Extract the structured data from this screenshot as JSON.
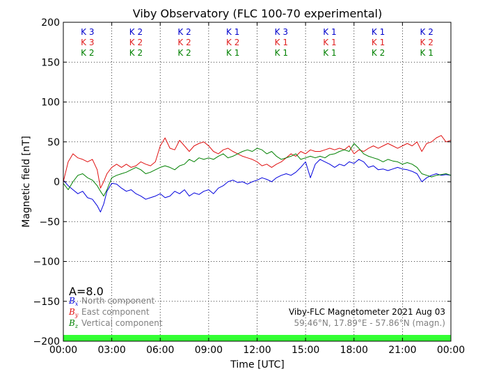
{
  "chart_data": {
    "type": "line",
    "title": "Viby Observatory (FLC 100-70 experimental)",
    "xlabel": "Time [UTC]",
    "ylabel": "Magnetic field [nT]",
    "xlim": [
      0,
      24
    ],
    "ylim": [
      -200,
      200
    ],
    "x_ticks": [
      0,
      3,
      6,
      9,
      12,
      15,
      18,
      21,
      24
    ],
    "x_tick_labels": [
      "00:00",
      "03:00",
      "06:00",
      "09:00",
      "12:00",
      "15:00",
      "18:00",
      "21:00",
      "00:00"
    ],
    "y_ticks": [
      -200,
      -150,
      -100,
      -50,
      0,
      50,
      100,
      150,
      200
    ],
    "y_tick_labels": [
      "−200",
      "−150",
      "−100",
      "−50",
      "0",
      "50",
      "100",
      "150",
      "200"
    ],
    "grid": true,
    "a_index_label": "A=8.0",
    "k_index_rows": [
      {
        "color": "#0000cc",
        "labels": [
          "K 3",
          "K 2",
          "K 2",
          "K 1",
          "K 3",
          "K 1",
          "K 1",
          "K 2"
        ]
      },
      {
        "color": "#e02020",
        "labels": [
          "K 3",
          "K 2",
          "K 2",
          "K 2",
          "K 1",
          "K 1",
          "K 1",
          "K 2"
        ]
      },
      {
        "color": "#008000",
        "labels": [
          "K 2",
          "K 2",
          "K 2",
          "K 1",
          "K 1",
          "K 1",
          "K 2",
          "K 1"
        ]
      }
    ],
    "series": [
      {
        "name": "North component",
        "symbol": "B",
        "subscript": "x",
        "color": "#0000dd",
        "x": [
          0,
          0.3,
          0.6,
          0.9,
          1.2,
          1.5,
          1.8,
          2.1,
          2.3,
          2.5,
          2.7,
          3.0,
          3.3,
          3.6,
          3.9,
          4.2,
          4.5,
          4.8,
          5.1,
          5.4,
          5.7,
          6.0,
          6.3,
          6.6,
          6.9,
          7.2,
          7.5,
          7.8,
          8.1,
          8.4,
          8.7,
          9.0,
          9.3,
          9.6,
          9.9,
          10.2,
          10.5,
          10.8,
          11.1,
          11.4,
          11.7,
          12.0,
          12.3,
          12.6,
          12.9,
          13.2,
          13.5,
          13.8,
          14.1,
          14.4,
          14.7,
          15.0,
          15.3,
          15.6,
          15.9,
          16.2,
          16.5,
          16.8,
          17.1,
          17.4,
          17.7,
          18.0,
          18.3,
          18.6,
          18.9,
          19.2,
          19.5,
          19.8,
          20.1,
          20.4,
          20.7,
          21.0,
          21.3,
          21.6,
          21.9,
          22.2,
          22.5,
          22.8,
          23.1,
          23.4,
          23.7,
          24.0
        ],
        "values": [
          2,
          -5,
          -10,
          -15,
          -12,
          -20,
          -22,
          -30,
          -38,
          -28,
          -12,
          -2,
          -3,
          -8,
          -12,
          -10,
          -15,
          -18,
          -22,
          -20,
          -18,
          -15,
          -20,
          -18,
          -12,
          -15,
          -10,
          -18,
          -14,
          -16,
          -12,
          -10,
          -15,
          -8,
          -5,
          0,
          2,
          -1,
          0,
          -3,
          0,
          2,
          5,
          3,
          0,
          5,
          8,
          10,
          8,
          12,
          18,
          25,
          5,
          22,
          28,
          25,
          22,
          18,
          22,
          20,
          25,
          23,
          28,
          25,
          18,
          20,
          15,
          16,
          14,
          16,
          18,
          16,
          15,
          13,
          10,
          0,
          5,
          8,
          10,
          8,
          9,
          8
        ]
      },
      {
        "name": "East component",
        "symbol": "B",
        "subscript": "y",
        "color": "#e01010",
        "x": [
          0,
          0.3,
          0.6,
          0.9,
          1.2,
          1.5,
          1.8,
          2.1,
          2.3,
          2.5,
          2.7,
          3.0,
          3.3,
          3.6,
          3.9,
          4.2,
          4.5,
          4.8,
          5.1,
          5.4,
          5.7,
          6.0,
          6.3,
          6.6,
          6.9,
          7.2,
          7.5,
          7.8,
          8.1,
          8.4,
          8.7,
          9.0,
          9.3,
          9.6,
          9.9,
          10.2,
          10.5,
          10.8,
          11.1,
          11.4,
          11.7,
          12.0,
          12.3,
          12.6,
          12.9,
          13.2,
          13.5,
          13.8,
          14.1,
          14.4,
          14.7,
          15.0,
          15.3,
          15.6,
          15.9,
          16.2,
          16.5,
          16.8,
          17.1,
          17.4,
          17.7,
          18.0,
          18.3,
          18.6,
          18.9,
          19.2,
          19.5,
          19.8,
          20.1,
          20.4,
          20.7,
          21.0,
          21.3,
          21.6,
          21.9,
          22.2,
          22.5,
          22.8,
          23.1,
          23.4,
          23.7,
          24.0
        ],
        "values": [
          0,
          25,
          35,
          30,
          28,
          25,
          28,
          15,
          -8,
          0,
          10,
          18,
          22,
          18,
          22,
          18,
          20,
          25,
          22,
          20,
          25,
          45,
          55,
          42,
          40,
          52,
          45,
          38,
          45,
          48,
          50,
          45,
          38,
          35,
          40,
          42,
          38,
          35,
          32,
          30,
          28,
          25,
          20,
          22,
          18,
          22,
          25,
          30,
          35,
          32,
          38,
          35,
          40,
          38,
          38,
          40,
          42,
          40,
          42,
          40,
          45,
          35,
          40,
          38,
          42,
          45,
          42,
          45,
          48,
          45,
          42,
          45,
          48,
          45,
          50,
          38,
          48,
          50,
          55,
          58,
          50,
          52
        ]
      },
      {
        "name": "Vertical component",
        "symbol": "B",
        "subscript": "z",
        "color": "#008000",
        "x": [
          0,
          0.3,
          0.6,
          0.9,
          1.2,
          1.5,
          1.8,
          2.1,
          2.3,
          2.5,
          2.7,
          3.0,
          3.3,
          3.6,
          3.9,
          4.2,
          4.5,
          4.8,
          5.1,
          5.4,
          5.7,
          6.0,
          6.3,
          6.6,
          6.9,
          7.2,
          7.5,
          7.8,
          8.1,
          8.4,
          8.7,
          9.0,
          9.3,
          9.6,
          9.9,
          10.2,
          10.5,
          10.8,
          11.1,
          11.4,
          11.7,
          12.0,
          12.3,
          12.6,
          12.9,
          13.2,
          13.5,
          13.8,
          14.1,
          14.4,
          14.7,
          15.0,
          15.3,
          15.6,
          15.9,
          16.2,
          16.5,
          16.8,
          17.1,
          17.4,
          17.7,
          18.0,
          18.3,
          18.6,
          18.9,
          19.2,
          19.5,
          19.8,
          20.1,
          20.4,
          20.7,
          21.0,
          21.3,
          21.6,
          21.9,
          22.2,
          22.5,
          22.8,
          23.1,
          23.4,
          23.7,
          24.0
        ],
        "values": [
          -2,
          -10,
          0,
          8,
          10,
          5,
          2,
          -5,
          -12,
          -18,
          -10,
          5,
          8,
          10,
          12,
          15,
          18,
          15,
          10,
          12,
          15,
          18,
          20,
          18,
          15,
          20,
          22,
          28,
          25,
          30,
          28,
          30,
          28,
          32,
          35,
          30,
          32,
          35,
          38,
          40,
          38,
          42,
          40,
          35,
          38,
          32,
          28,
          30,
          32,
          35,
          28,
          30,
          32,
          30,
          32,
          30,
          34,
          35,
          38,
          40,
          38,
          48,
          42,
          35,
          32,
          30,
          28,
          25,
          28,
          26,
          25,
          22,
          24,
          22,
          18,
          10,
          8,
          6,
          8,
          9,
          10,
          8
        ]
      }
    ],
    "station_label": "Viby-FLC Magnetometer 2021 Aug 03",
    "coords_label": "59.46°N, 17.89°E - 57.86°N (magn.)",
    "quality_bar_color": "#33ff33"
  }
}
